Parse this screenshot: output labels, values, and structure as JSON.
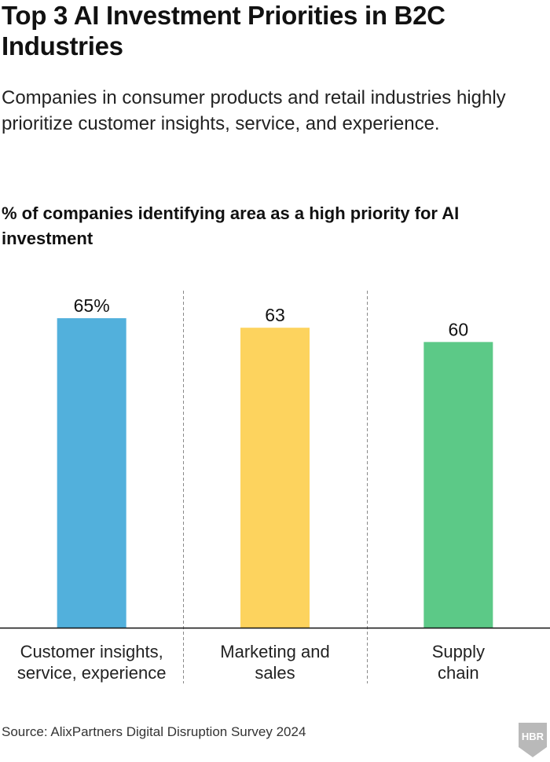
{
  "header": {
    "title": "Top 3 AI Investment Priorities in B2C Industries",
    "subtitle": "Companies in consumer products and retail industries highly prioritize customer insights, service, and experience.",
    "measure_label": "% of companies identifying area as a high priority for AI investment"
  },
  "footer": {
    "source": "Source: AlixPartners Digital Disruption Survey 2024",
    "logo_text": "HBR"
  },
  "chart_data": {
    "type": "bar",
    "title": "% of companies identifying area as a high priority for AI investment",
    "categories": [
      [
        "Customer insights,",
        "service, experience"
      ],
      [
        "Marketing and",
        "sales"
      ],
      [
        "Supply",
        "chain"
      ]
    ],
    "values": [
      65,
      63,
      60
    ],
    "value_labels": [
      "65%",
      "63",
      "60"
    ],
    "colors": [
      "#52b0dc",
      "#fdd35e",
      "#5cc987"
    ],
    "ylim": [
      0,
      66
    ],
    "xlabel": "",
    "ylabel": "",
    "grid": false
  }
}
